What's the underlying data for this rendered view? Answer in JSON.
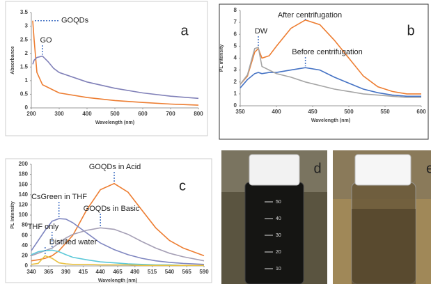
{
  "chart_data": [
    {
      "type": "line",
      "label": "a",
      "xlabel": "Wavelength (nm)",
      "ylabel": "Absorbance",
      "x": [
        205,
        210,
        220,
        240,
        260,
        280,
        300,
        400,
        500,
        600,
        700,
        800
      ],
      "series": [
        {
          "name": "GOQDs",
          "color": "#ed7d31",
          "values": [
            3.2,
            2.5,
            1.3,
            0.85,
            0.75,
            0.65,
            0.55,
            0.38,
            0.27,
            0.2,
            0.14,
            0.1
          ]
        },
        {
          "name": "GO",
          "color": "#8080b8",
          "values": [
            1.6,
            1.75,
            1.85,
            1.9,
            1.7,
            1.45,
            1.3,
            0.95,
            0.72,
            0.55,
            0.43,
            0.35
          ]
        }
      ],
      "xlim": [
        200,
        800
      ],
      "xticks": [
        200,
        300,
        400,
        500,
        600,
        700,
        800
      ],
      "ylim": [
        0,
        3.5
      ],
      "yticks": [
        0,
        0.5,
        1,
        1.5,
        2,
        2.5,
        3,
        3.5
      ]
    },
    {
      "type": "line",
      "label": "b",
      "xlabel": "Wavelength (nm)",
      "ylabel": "PL intensity",
      "x": [
        350,
        360,
        370,
        375,
        380,
        390,
        400,
        420,
        440,
        460,
        480,
        500,
        520,
        540,
        560,
        580,
        600
      ],
      "series": [
        {
          "name": "After centrifugation",
          "color": "#ed7d31",
          "values": [
            1.8,
            2.5,
            4.5,
            4.8,
            4.0,
            4.2,
            5.0,
            6.5,
            7.2,
            6.8,
            5.5,
            4.0,
            2.5,
            1.6,
            1.2,
            1.0,
            1.0
          ]
        },
        {
          "name": "Before centrifugation",
          "color": "#4472c4",
          "values": [
            1.5,
            2.2,
            2.7,
            2.8,
            2.7,
            2.8,
            2.8,
            3.0,
            3.2,
            3.0,
            2.4,
            1.9,
            1.4,
            1.1,
            0.9,
            0.8,
            0.8
          ]
        },
        {
          "name": "DW",
          "color": "#a5a5a5",
          "values": [
            1.8,
            2.6,
            4.8,
            4.9,
            3.3,
            3.0,
            2.7,
            2.4,
            2.0,
            1.7,
            1.4,
            1.2,
            1.0,
            0.9,
            0.8,
            0.7,
            0.7
          ]
        }
      ],
      "xlim": [
        350,
        600
      ],
      "xticks": [
        350,
        400,
        450,
        500,
        550,
        600
      ],
      "ylim": [
        0,
        8
      ],
      "yticks": [
        0,
        1,
        2,
        3,
        4,
        5,
        6,
        7,
        8
      ]
    },
    {
      "type": "line",
      "label": "c",
      "xlabel": "Wavelength (nm)",
      "ylabel": "PL Intensity",
      "x": [
        340,
        350,
        360,
        370,
        380,
        390,
        400,
        420,
        440,
        460,
        480,
        500,
        520,
        540,
        560,
        590
      ],
      "series": [
        {
          "name": "GOQDs in Acid",
          "color": "#ed7d31",
          "values": [
            10,
            12,
            15,
            20,
            30,
            45,
            60,
            110,
            150,
            162,
            145,
            110,
            75,
            50,
            35,
            20
          ]
        },
        {
          "name": "CsGreen in THF",
          "color": "#7f86c0",
          "values": [
            30,
            50,
            70,
            88,
            93,
            92,
            85,
            65,
            45,
            32,
            22,
            15,
            10,
            7,
            5,
            3
          ]
        },
        {
          "name": "GOQDs in Basic",
          "color": "#a59fb5",
          "values": [
            20,
            25,
            30,
            35,
            45,
            55,
            62,
            70,
            75,
            72,
            62,
            48,
            35,
            25,
            18,
            10
          ]
        },
        {
          "name": "THF only",
          "color": "#5bc8d8",
          "values": [
            22,
            28,
            30,
            31,
            28,
            22,
            17,
            12,
            8,
            6,
            4,
            3,
            2,
            2,
            1,
            1
          ]
        },
        {
          "name": "Distilled water",
          "color": "#e8c040",
          "values": [
            3,
            5,
            20,
            15,
            6,
            4,
            3,
            3,
            2,
            2,
            2,
            1,
            1,
            1,
            1,
            1
          ]
        }
      ],
      "xlim": [
        340,
        590
      ],
      "xticks": [
        340,
        365,
        390,
        415,
        440,
        465,
        490,
        515,
        540,
        565,
        590
      ],
      "ylim": [
        0,
        200
      ],
      "yticks": [
        0,
        20,
        40,
        60,
        80,
        100,
        120,
        140,
        160,
        180,
        200
      ]
    }
  ],
  "photos": {
    "d": {
      "label": "d",
      "scale": [
        50,
        40,
        30,
        20,
        10
      ]
    },
    "e": {
      "label": "e"
    }
  }
}
